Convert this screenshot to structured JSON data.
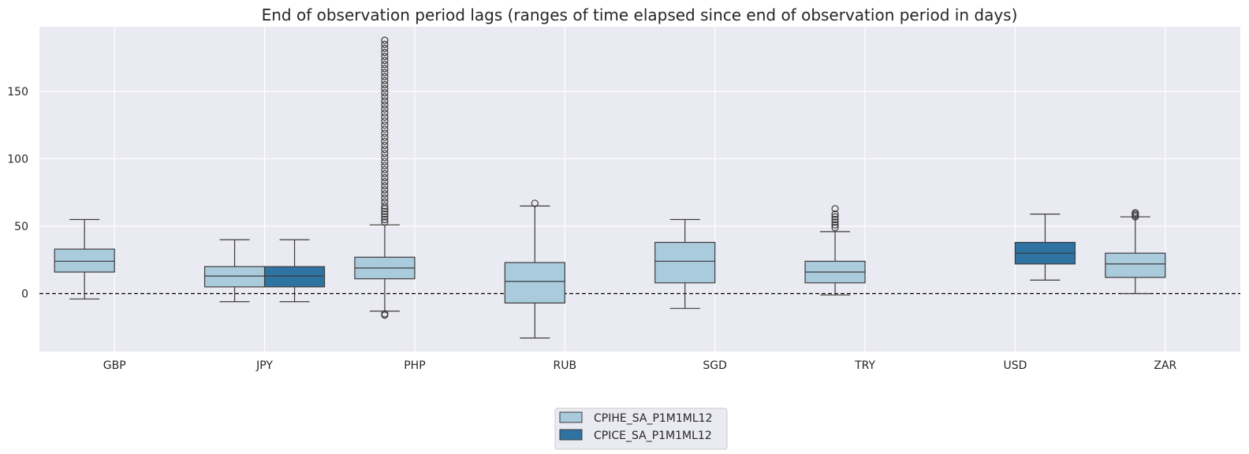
{
  "chart_data": {
    "type": "boxplot",
    "title": "End of observation period lags (ranges of time elapsed since end of observation period in days)",
    "xlabel": "",
    "ylabel": "",
    "categories": [
      "GBP",
      "JPY",
      "PHP",
      "RUB",
      "SGD",
      "TRY",
      "USD",
      "ZAR"
    ],
    "ylim": [
      -43,
      198
    ],
    "yticks": [
      0,
      50,
      100,
      150
    ],
    "reference_line": 0,
    "legend_position": "bottom-center",
    "colors": {
      "CPIHE_SA_P1M1ML12": "#a9cbdc",
      "CPICE_SA_P1M1ML12": "#2f73a3",
      "background": "#eaeaf2",
      "grid": "#ffffff",
      "edge": "#3b3b3b"
    },
    "series": [
      {
        "name": "CPIHE_SA_P1M1ML12",
        "boxes": [
          {
            "category": "GBP",
            "whisker_low": -4,
            "q1": 16,
            "median": 24,
            "q3": 33,
            "whisker_high": 55,
            "outliers": []
          },
          {
            "category": "JPY",
            "whisker_low": -6,
            "q1": 5,
            "median": 13,
            "q3": 20,
            "whisker_high": 40,
            "outliers": []
          },
          {
            "category": "PHP",
            "whisker_low": -13,
            "q1": 11,
            "median": 19,
            "q3": 27,
            "whisker_high": 51,
            "outliers": [
              -16,
              -15,
              53,
              55,
              57,
              59,
              61,
              63,
              65,
              68,
              71,
              74,
              77,
              80,
              83,
              86,
              89,
              92,
              95,
              98,
              101,
              104,
              107,
              110,
              113,
              116,
              119,
              122,
              125,
              128,
              131,
              134,
              137,
              140,
              143,
              146,
              149,
              152,
              155,
              158,
              161,
              164,
              167,
              170,
              173,
              176,
              179,
              182,
              185,
              188
            ]
          },
          {
            "category": "RUB",
            "whisker_low": -33,
            "q1": -7,
            "median": 9,
            "q3": 23,
            "whisker_high": 65,
            "outliers": [
              67
            ]
          },
          {
            "category": "SGD",
            "whisker_low": -11,
            "q1": 8,
            "median": 24,
            "q3": 38,
            "whisker_high": 55,
            "outliers": []
          },
          {
            "category": "TRY",
            "whisker_low": -1,
            "q1": 8,
            "median": 16,
            "q3": 24,
            "whisker_high": 46,
            "outliers": [
              49,
              51,
              53,
              55,
              57,
              59,
              63
            ]
          },
          {
            "category": "ZAR",
            "whisker_low": 0,
            "q1": 12,
            "median": 22,
            "q3": 30,
            "whisker_high": 57,
            "outliers": [
              57,
              58,
              59,
              60
            ]
          }
        ]
      },
      {
        "name": "CPICE_SA_P1M1ML12",
        "boxes": [
          {
            "category": "JPY",
            "whisker_low": -6,
            "q1": 5,
            "median": 13,
            "q3": 20,
            "whisker_high": 40,
            "outliers": []
          },
          {
            "category": "USD",
            "whisker_low": 10,
            "q1": 22,
            "median": 30,
            "q3": 38,
            "whisker_high": 59,
            "outliers": []
          }
        ]
      }
    ]
  },
  "legend": {
    "items": [
      {
        "label": "CPIHE_SA_P1M1ML12"
      },
      {
        "label": "CPICE_SA_P1M1ML12"
      }
    ]
  }
}
